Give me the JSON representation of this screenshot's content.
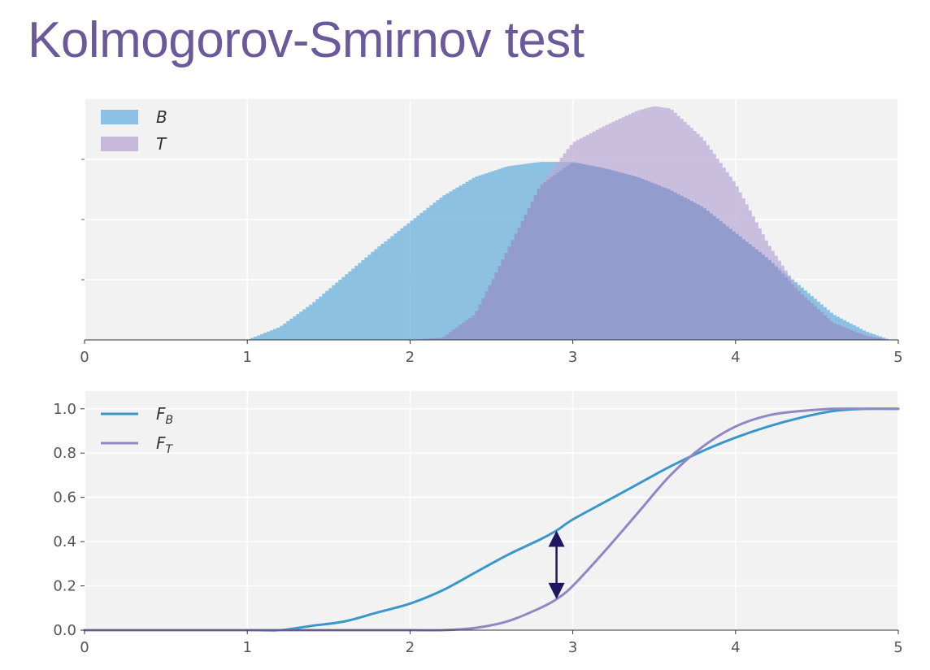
{
  "slide": {
    "title": "Kolmogorov-Smirnov test"
  },
  "chart_data": [
    {
      "type": "area",
      "title": "",
      "xlabel": "",
      "ylabel": "",
      "xlim": [
        0,
        5
      ],
      "x_ticks": [
        "0",
        "1",
        "2",
        "3",
        "4",
        "5"
      ],
      "y_ticks_labeled": false,
      "grid": true,
      "legend_position": "top-left",
      "x": [
        1.0,
        1.2,
        1.4,
        1.6,
        1.8,
        2.0,
        2.2,
        2.4,
        2.6,
        2.8,
        3.0,
        3.2,
        3.4,
        3.5,
        3.6,
        3.8,
        4.0,
        4.2,
        4.4,
        4.6,
        4.8,
        4.95
      ],
      "series": [
        {
          "name": "B",
          "color": "#6fb3de",
          "values": [
            0.0,
            0.06,
            0.17,
            0.3,
            0.43,
            0.55,
            0.67,
            0.76,
            0.81,
            0.83,
            0.83,
            0.8,
            0.76,
            0.73,
            0.7,
            0.62,
            0.5,
            0.38,
            0.25,
            0.12,
            0.04,
            0.0
          ]
        },
        {
          "name": "T",
          "color": "#b9a9d4",
          "values": [
            0.0,
            0.0,
            0.0,
            0.0,
            0.0,
            0.0,
            0.01,
            0.12,
            0.42,
            0.72,
            0.92,
            1.0,
            1.07,
            1.09,
            1.08,
            0.94,
            0.73,
            0.45,
            0.22,
            0.08,
            0.02,
            0.0
          ]
        }
      ]
    },
    {
      "type": "line",
      "title": "",
      "xlabel": "",
      "ylabel": "",
      "xlim": [
        0,
        5
      ],
      "ylim": [
        0,
        1.08
      ],
      "x_ticks": [
        "0",
        "1",
        "2",
        "3",
        "4",
        "5"
      ],
      "y_ticks": [
        "0.0",
        "0.2",
        "0.4",
        "0.6",
        "0.8",
        "1.0"
      ],
      "grid": true,
      "legend_position": "top-left",
      "x": [
        0,
        1.0,
        1.2,
        1.4,
        1.6,
        1.8,
        2.0,
        2.2,
        2.4,
        2.6,
        2.8,
        2.9,
        3.0,
        3.2,
        3.4,
        3.6,
        3.8,
        4.0,
        4.2,
        4.4,
        4.6,
        4.8,
        5.0
      ],
      "series": [
        {
          "name": "F",
          "subscript": "B",
          "color": "#3a97c9",
          "values": [
            0.0,
            0.0,
            0.0,
            0.02,
            0.04,
            0.08,
            0.12,
            0.18,
            0.26,
            0.34,
            0.41,
            0.45,
            0.5,
            0.58,
            0.66,
            0.74,
            0.81,
            0.87,
            0.92,
            0.96,
            0.99,
            1.0,
            1.0
          ]
        },
        {
          "name": "F",
          "subscript": "T",
          "color": "#9088c4",
          "values": [
            0.0,
            0.0,
            0.0,
            0.0,
            0.0,
            0.0,
            0.0,
            0.0,
            0.01,
            0.04,
            0.1,
            0.14,
            0.2,
            0.36,
            0.53,
            0.7,
            0.83,
            0.92,
            0.97,
            0.99,
            1.0,
            1.0,
            1.0
          ]
        }
      ],
      "annotation": {
        "type": "double-arrow",
        "x": 2.9,
        "y_from": 0.14,
        "y_to": 0.45,
        "color": "#1e1660"
      }
    }
  ]
}
